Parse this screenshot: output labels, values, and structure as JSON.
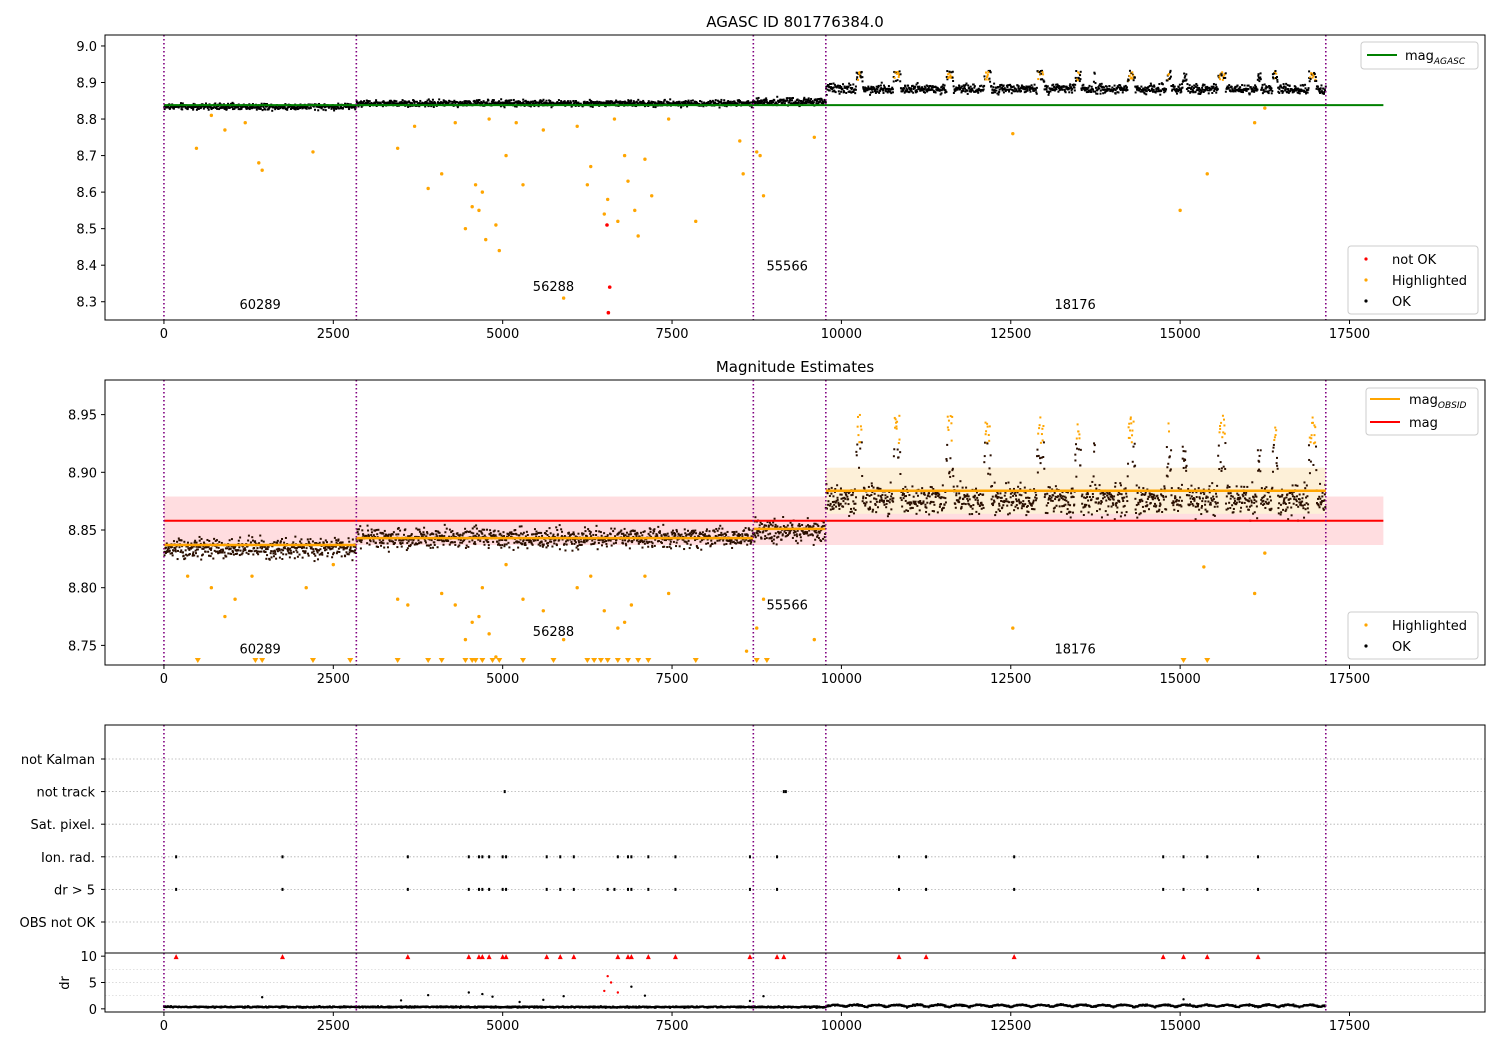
{
  "chart_data": [
    {
      "type": "scatter",
      "title": "AGASC ID 801776384.0",
      "xlim": [
        -870,
        19500
      ],
      "ylim": [
        8.25,
        9.03
      ],
      "x_ticks": [
        0,
        2500,
        5000,
        7500,
        10000,
        12500,
        15000,
        17500
      ],
      "y_ticks": [
        8.3,
        8.4,
        8.5,
        8.6,
        8.7,
        8.8,
        8.9,
        9.0
      ],
      "y_decimals": 1,
      "grid": false,
      "legend_upper": {
        "position": "upper-right",
        "entries": [
          {
            "label": "mag",
            "sub": "AGASC",
            "color": "#008000"
          }
        ]
      },
      "legend_lower": {
        "position": "lower-right",
        "entries": [
          {
            "label": "not OK",
            "color": "#ff0000"
          },
          {
            "label": "Highlighted",
            "color": "#ffa500"
          },
          {
            "label": "OK",
            "color": "#000000"
          }
        ]
      },
      "ref_lines": [
        {
          "name": "mag_AGASC",
          "y": 8.838,
          "x_range": [
            0,
            18000
          ],
          "color": "#008000"
        }
      ],
      "obs_boundaries": [
        0,
        2840,
        8700,
        9770,
        17150
      ],
      "obsid_labels": [
        {
          "text": "60289",
          "x": 1420,
          "y": 8.28
        },
        {
          "text": "56288",
          "x": 5750,
          "y": 8.33
        },
        {
          "text": "55566",
          "x": 9200,
          "y": 8.385
        },
        {
          "text": "18176",
          "x": 13450,
          "y": 8.28
        }
      ],
      "segments": [
        {
          "x_range": [
            0,
            2840
          ],
          "base": 8.834,
          "spread": 0.008,
          "color": "#000000"
        },
        {
          "x_range": [
            2840,
            8700
          ],
          "base": 8.843,
          "spread": 0.008,
          "color": "#000000"
        },
        {
          "x_range": [
            8700,
            9770
          ],
          "base": 8.848,
          "spread": 0.01,
          "color": "#000000"
        },
        {
          "x_range": [
            9770,
            17150
          ],
          "base": 8.882,
          "spread": 0.012,
          "color": "#000000",
          "spikes_to": 8.93
        }
      ],
      "highlighted_points": [
        [
          480,
          8.72
        ],
        [
          1400,
          8.68
        ],
        [
          1450,
          8.66
        ],
        [
          2200,
          8.71
        ],
        [
          3450,
          8.72
        ],
        [
          3900,
          8.61
        ],
        [
          4100,
          8.65
        ],
        [
          4450,
          8.5
        ],
        [
          4550,
          8.56
        ],
        [
          4600,
          8.62
        ],
        [
          4650,
          8.55
        ],
        [
          4700,
          8.6
        ],
        [
          4750,
          8.47
        ],
        [
          4900,
          8.51
        ],
        [
          4950,
          8.44
        ],
        [
          5050,
          8.7
        ],
        [
          5300,
          8.62
        ],
        [
          5900,
          8.31
        ],
        [
          6250,
          8.62
        ],
        [
          6300,
          8.67
        ],
        [
          6500,
          8.54
        ],
        [
          6550,
          8.58
        ],
        [
          6700,
          8.52
        ],
        [
          6800,
          8.7
        ],
        [
          6850,
          8.63
        ],
        [
          6950,
          8.55
        ],
        [
          7000,
          8.48
        ],
        [
          7100,
          8.69
        ],
        [
          7200,
          8.59
        ],
        [
          7850,
          8.52
        ],
        [
          8500,
          8.74
        ],
        [
          8550,
          8.65
        ],
        [
          8750,
          8.71
        ],
        [
          8800,
          8.7
        ],
        [
          8850,
          8.59
        ],
        [
          9600,
          8.75
        ],
        [
          12530,
          8.76
        ],
        [
          15000,
          8.55
        ],
        [
          15400,
          8.65
        ],
        [
          16100,
          8.79
        ],
        [
          16250,
          8.83
        ],
        [
          700,
          8.81
        ],
        [
          900,
          8.77
        ],
        [
          1200,
          8.79
        ],
        [
          3700,
          8.78
        ],
        [
          4300,
          8.79
        ],
        [
          4800,
          8.8
        ],
        [
          5200,
          8.79
        ],
        [
          5600,
          8.77
        ],
        [
          6100,
          8.78
        ],
        [
          6650,
          8.8
        ],
        [
          7450,
          8.8
        ]
      ],
      "not_ok_points": [
        [
          6540,
          8.51
        ],
        [
          6580,
          8.34
        ],
        [
          6560,
          8.27
        ]
      ]
    },
    {
      "type": "scatter",
      "title": "Magnitude Estimates",
      "xlim": [
        -870,
        19500
      ],
      "ylim": [
        8.733,
        8.98
      ],
      "x_ticks": [
        0,
        2500,
        5000,
        7500,
        10000,
        12500,
        15000,
        17500
      ],
      "y_ticks": [
        8.75,
        8.8,
        8.85,
        8.9,
        8.95
      ],
      "y_decimals": 2,
      "grid": false,
      "legend_upper": {
        "position": "upper-right",
        "entries": [
          {
            "label": "mag",
            "sub": "OBSID",
            "color": "#ffa500"
          },
          {
            "label": "mag",
            "color": "#ff0000"
          }
        ]
      },
      "legend_lower": {
        "position": "lower-right",
        "entries": [
          {
            "label": "Highlighted",
            "color": "#ffa500"
          },
          {
            "label": "OK",
            "color": "#000000"
          }
        ]
      },
      "ref_lines": [
        {
          "name": "mag",
          "y": 8.858,
          "x_range": [
            0,
            18000
          ],
          "color": "#ff0000",
          "band": [
            8.837,
            8.879
          ]
        }
      ],
      "obsid_lines": [
        {
          "x_range": [
            0,
            2840
          ],
          "y": 8.837
        },
        {
          "x_range": [
            2840,
            8700
          ],
          "y": 8.843
        },
        {
          "x_range": [
            8700,
            9770
          ],
          "y": 8.851
        },
        {
          "x_range": [
            9770,
            17150
          ],
          "y": 8.884,
          "band": [
            8.864,
            8.904
          ]
        }
      ],
      "obs_boundaries": [
        0,
        2840,
        8700,
        9770,
        17150
      ],
      "obsid_labels": [
        {
          "text": "60289",
          "x": 1420,
          "y": 8.743
        },
        {
          "text": "56288",
          "x": 5750,
          "y": 8.758
        },
        {
          "text": "55566",
          "x": 9200,
          "y": 8.781
        },
        {
          "text": "18176",
          "x": 13450,
          "y": 8.743
        }
      ],
      "segments": [
        {
          "x_range": [
            0,
            2840
          ],
          "base": 8.834,
          "spread": 0.008
        },
        {
          "x_range": [
            2840,
            8700
          ],
          "base": 8.843,
          "spread": 0.008
        },
        {
          "x_range": [
            8700,
            9770
          ],
          "base": 8.848,
          "spread": 0.01
        },
        {
          "x_range": [
            9770,
            17150
          ],
          "base": 8.876,
          "spread": 0.012,
          "spikes_to": 8.95
        }
      ],
      "highlighted_points": [
        [
          350,
          8.81
        ],
        [
          700,
          8.8
        ],
        [
          900,
          8.775
        ],
        [
          1050,
          8.79
        ],
        [
          1300,
          8.81
        ],
        [
          2100,
          8.8
        ],
        [
          2500,
          8.82
        ],
        [
          3450,
          8.79
        ],
        [
          3600,
          8.785
        ],
        [
          4100,
          8.795
        ],
        [
          4300,
          8.785
        ],
        [
          4450,
          8.755
        ],
        [
          4550,
          8.77
        ],
        [
          4650,
          8.775
        ],
        [
          4700,
          8.8
        ],
        [
          4800,
          8.76
        ],
        [
          4900,
          8.74
        ],
        [
          5050,
          8.82
        ],
        [
          5300,
          8.79
        ],
        [
          5600,
          8.78
        ],
        [
          5900,
          8.755
        ],
        [
          6100,
          8.8
        ],
        [
          6300,
          8.81
        ],
        [
          6500,
          8.78
        ],
        [
          6700,
          8.765
        ],
        [
          6800,
          8.77
        ],
        [
          6900,
          8.785
        ],
        [
          7100,
          8.81
        ],
        [
          7450,
          8.795
        ],
        [
          8600,
          8.745
        ],
        [
          8750,
          8.765
        ],
        [
          8850,
          8.79
        ],
        [
          9600,
          8.755
        ],
        [
          12530,
          8.765
        ],
        [
          15350,
          8.818
        ],
        [
          16100,
          8.795
        ],
        [
          16250,
          8.83
        ]
      ],
      "clipped_markers_x": [
        500,
        1350,
        1450,
        2200,
        2750,
        3450,
        3900,
        4100,
        4450,
        4550,
        4600,
        4700,
        4850,
        4950,
        5300,
        5750,
        6250,
        6350,
        6450,
        6550,
        6700,
        6850,
        7000,
        7150,
        7850,
        8750,
        8900,
        15050,
        15400
      ]
    },
    {
      "type": "scatter",
      "title": "",
      "xlim": [
        -870,
        19500
      ],
      "x_ticks": [
        0,
        2500,
        5000,
        7500,
        10000,
        12500,
        15000,
        17500
      ],
      "obs_boundaries": [
        0,
        2840,
        8700,
        9770,
        17150
      ],
      "flag_rows": [
        "not Kalman",
        "not track",
        "Sat. pixel.",
        "Ion. rad.",
        "dr > 5",
        "OBS not OK"
      ],
      "flags": {
        "not Kalman": [],
        "not track": [
          5030,
          9150,
          9180
        ],
        "Sat. pixel.": [],
        "Ion. rad.": [
          180,
          1750,
          3600,
          4500,
          4650,
          4700,
          4800,
          5000,
          5050,
          5650,
          5850,
          6050,
          6700,
          6850,
          6900,
          7150,
          7550,
          8650,
          9050,
          10850,
          11250,
          12550,
          14750,
          15050,
          15400,
          16150
        ],
        "dr > 5": [
          180,
          1750,
          3600,
          4500,
          4650,
          4700,
          4800,
          5000,
          5050,
          5650,
          5850,
          6050,
          6550,
          6650,
          6850,
          6900,
          7150,
          7550,
          8650,
          9050,
          10850,
          11250,
          12550,
          14750,
          15050,
          15400,
          16150
        ],
        "OBS not OK": []
      },
      "dr": {
        "ylabel": "dr",
        "y_ticks": [
          0,
          5,
          10
        ],
        "ylim": [
          -0.6,
          10.6
        ],
        "clip": 10,
        "typical": 0.35,
        "outliers": [
          [
            1450,
            2.2
          ],
          [
            3500,
            1.6
          ],
          [
            3900,
            2.6
          ],
          [
            4500,
            3.1
          ],
          [
            4700,
            2.8
          ],
          [
            4850,
            2.3
          ],
          [
            5250,
            1.3
          ],
          [
            5600,
            1.7
          ],
          [
            5900,
            2.4
          ],
          [
            6550,
            6.2
          ],
          [
            6600,
            5.0
          ],
          [
            6500,
            3.4
          ],
          [
            6700,
            3.1
          ],
          [
            6900,
            4.2
          ],
          [
            7100,
            2.5
          ],
          [
            8650,
            1.5
          ],
          [
            8850,
            2.4
          ],
          [
            15050,
            1.8
          ]
        ],
        "red_markers_x": [
          180,
          1750,
          3600,
          4500,
          4650,
          4700,
          4800,
          5000,
          5050,
          5650,
          5850,
          6050,
          6700,
          6850,
          6900,
          7150,
          7550,
          8650,
          9050,
          9150,
          10850,
          11250,
          12550,
          14750,
          15050,
          15400,
          16150
        ]
      }
    }
  ]
}
